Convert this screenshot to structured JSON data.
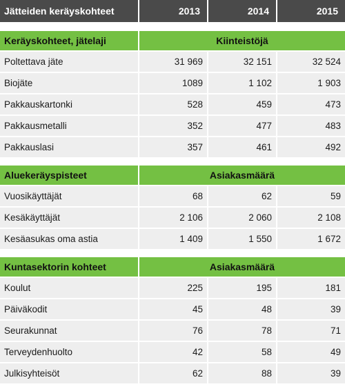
{
  "header": {
    "title": "Jätteiden keräyskohteet",
    "years": [
      "2013",
      "2014",
      "2015"
    ]
  },
  "sections": [
    {
      "label": "Keräyskohteet, jätelaji",
      "span_label": "Kiinteistöjä",
      "rows": [
        {
          "name": "Poltettava jäte",
          "v2013": "31 969",
          "v2014": "32 151",
          "v2015": "32 524"
        },
        {
          "name": "Biojäte",
          "v2013": "1089",
          "v2014": "1 102",
          "v2015": "1 903"
        },
        {
          "name": "Pakkauskartonki",
          "v2013": "528",
          "v2014": "459",
          "v2015": "473"
        },
        {
          "name": "Pakkausmetalli",
          "v2013": "352",
          "v2014": "477",
          "v2015": "483"
        },
        {
          "name": "Pakkauslasi",
          "v2013": "357",
          "v2014": "461",
          "v2015": "492"
        }
      ]
    },
    {
      "label": "Aluekeräyspisteet",
      "span_label": "Asiakasmäärä",
      "rows": [
        {
          "name": "Vuosikäyttäjät",
          "v2013": "68",
          "v2014": "62",
          "v2015": "59"
        },
        {
          "name": "Kesäkäyttäjät",
          "v2013": "2 106",
          "v2014": "2 060",
          "v2015": "2 108"
        },
        {
          "name": "Kesäasukas oma astia",
          "v2013": "1 409",
          "v2014": "1 550",
          "v2015": "1 672"
        }
      ]
    },
    {
      "label": "Kuntasektorin kohteet",
      "span_label": "Asiakasmäärä",
      "rows": [
        {
          "name": "Koulut",
          "v2013": "225",
          "v2014": "195",
          "v2015": "181"
        },
        {
          "name": "Päiväkodit",
          "v2013": "45",
          "v2014": "48",
          "v2015": "39"
        },
        {
          "name": "Seurakunnat",
          "v2013": "76",
          "v2014": "78",
          "v2015": "71"
        },
        {
          "name": "Terveydenhuolto",
          "v2013": "42",
          "v2014": "58",
          "v2015": "49"
        },
        {
          "name": "Julkisyhteisöt",
          "v2013": "62",
          "v2014": "88",
          "v2015": "39"
        }
      ]
    }
  ],
  "colors": {
    "header_bg": "#4a4a4a",
    "section_bg": "#74c043",
    "row_bg": "#eeeeee"
  }
}
